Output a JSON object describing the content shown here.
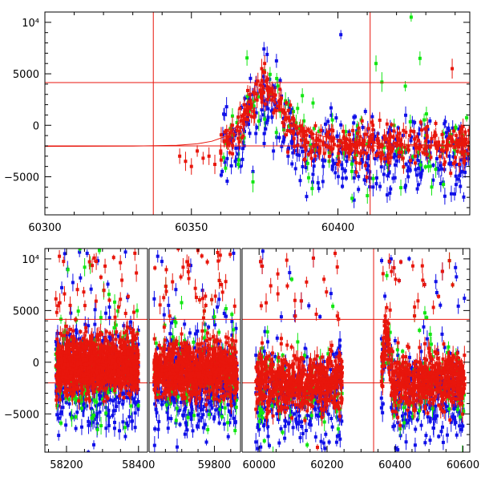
{
  "chart_data": [
    {
      "type": "scatter",
      "name": "top-panel",
      "xlim": [
        60300,
        60445
      ],
      "ylim": [
        -8700,
        11000
      ],
      "x_ticks": [
        "60300",
        "60350",
        "60400"
      ],
      "x_tick_values": [
        60300,
        60350,
        60400
      ],
      "y_ticks": [
        "10⁴",
        "5000",
        "0",
        "−5000"
      ],
      "y_tick_values": [
        10000,
        5000,
        0,
        -5000
      ],
      "hlines": [
        4150,
        -2000
      ],
      "vlines": [
        60337,
        60411
      ],
      "model_curve": {
        "x": [
          60300,
          60330,
          60345,
          60352,
          60357,
          60361,
          60364,
          60367,
          60370,
          60373,
          60375,
          60377,
          60380,
          60384,
          60390,
          60398,
          60408,
          60420,
          60445
        ],
        "y": [
          -2050,
          -2030,
          -1950,
          -1800,
          -1550,
          -1150,
          -500,
          400,
          1700,
          3100,
          3600,
          3000,
          1500,
          300,
          -700,
          -1300,
          -1650,
          -1850,
          -1980
        ],
        "color": "#e8160c"
      },
      "series": [
        {
          "color": "blue",
          "hex": "#1010e8",
          "points": [
            [
              60362,
              1800
            ],
            [
              60365,
              -3500
            ],
            [
              60366,
              800
            ],
            [
              60368,
              -2000
            ],
            [
              60370,
              2200
            ],
            [
              60371,
              -4500
            ],
            [
              60372,
              -800
            ],
            [
              60374,
              1500
            ],
            [
              60376,
              500
            ],
            [
              60378,
              -2500
            ],
            [
              60380,
              -1200
            ],
            [
              60383,
              -3000
            ],
            [
              60386,
              -2000
            ],
            [
              60389,
              -3500
            ],
            [
              60392,
              -2500
            ],
            [
              60395,
              -4000
            ],
            [
              60398,
              -2800
            ],
            [
              60401,
              8800
            ],
            [
              60403,
              -3500
            ],
            [
              60406,
              -4500
            ],
            [
              60409,
              -2500
            ],
            [
              60412,
              -6000
            ],
            [
              60416,
              -3500
            ],
            [
              60420,
              -2000
            ],
            [
              60424,
              -5000
            ],
            [
              60427,
              -3000
            ],
            [
              60430,
              -2500
            ],
            [
              60434,
              -4200
            ],
            [
              60438,
              -3000
            ],
            [
              60442,
              -1500
            ]
          ]
        },
        {
          "color": "green",
          "hex": "#12e612",
          "points": [
            [
              60364,
              900
            ],
            [
              60366,
              -3800
            ],
            [
              60368,
              -1200
            ],
            [
              60371,
              -5500
            ],
            [
              60373,
              400
            ],
            [
              60375,
              600
            ],
            [
              60379,
              -700
            ],
            [
              60383,
              2100
            ],
            [
              60390,
              -5100
            ],
            [
              60397,
              -3500
            ],
            [
              60402,
              -2700
            ],
            [
              60406,
              -1500
            ],
            [
              60410,
              -1800
            ],
            [
              60413,
              6000
            ],
            [
              60415,
              4200
            ],
            [
              60417,
              -3800
            ],
            [
              60420,
              -2500
            ],
            [
              60423,
              3800
            ],
            [
              60425,
              10500
            ],
            [
              60428,
              6500
            ],
            [
              60430,
              -1000
            ],
            [
              60432,
              -6000
            ],
            [
              60436,
              -800
            ],
            [
              60440,
              -2200
            ]
          ]
        },
        {
          "color": "red",
          "hex": "#e8160c",
          "points": [
            [
              60346,
              -3000
            ],
            [
              60348,
              -3500
            ],
            [
              60350,
              -4000
            ],
            [
              60352,
              -2500
            ],
            [
              60354,
              -3200
            ],
            [
              60356,
              -3000
            ],
            [
              60358,
              -3800
            ],
            [
              60360,
              -2500
            ],
            [
              60362,
              -1500
            ],
            [
              60364,
              0
            ],
            [
              60366,
              800
            ],
            [
              60368,
              2000
            ],
            [
              60370,
              3000
            ],
            [
              60372,
              4000
            ],
            [
              60374,
              5500
            ],
            [
              60375,
              6000
            ],
            [
              60376,
              4500
            ],
            [
              60378,
              3000
            ],
            [
              60380,
              1800
            ],
            [
              60382,
              1200
            ],
            [
              60385,
              500
            ],
            [
              60388,
              -300
            ],
            [
              60391,
              -800
            ],
            [
              60394,
              -1500
            ],
            [
              60397,
              -1200
            ],
            [
              60400,
              -2000
            ],
            [
              60403,
              -1800
            ],
            [
              60406,
              -2200
            ],
            [
              60409,
              -1500
            ],
            [
              60412,
              -2400
            ],
            [
              60415,
              -1900
            ],
            [
              60418,
              -2600
            ],
            [
              60421,
              -1500
            ],
            [
              60424,
              -2000
            ],
            [
              60427,
              -2200
            ],
            [
              60430,
              -1500
            ],
            [
              60433,
              -1000
            ],
            [
              60436,
              -2500
            ],
            [
              60439,
              5500
            ],
            [
              60442,
              -1800
            ]
          ]
        }
      ]
    },
    {
      "type": "scatter",
      "name": "bottom-panel",
      "segments": [
        {
          "label": "segment-1",
          "xlim": [
            58140,
            58425
          ],
          "x_ticks": [
            "58200",
            "58400"
          ],
          "x_tick_values": [
            58200,
            58400
          ],
          "data_range": [
            58170,
            58400
          ]
        },
        {
          "label": "segment-2",
          "xlim": [
            59600,
            59880
          ],
          "x_ticks": [
            "59800"
          ],
          "x_tick_values": [
            59800
          ],
          "data_range": [
            59615,
            59870
          ]
        },
        {
          "label": "segment-3",
          "xlim": [
            59950,
            60620
          ],
          "x_ticks": [
            "60000",
            "60200",
            "60400",
            "60600"
          ],
          "x_tick_values": [
            60000,
            60200,
            60400,
            60600
          ],
          "data_range": [
            59990,
            60605
          ],
          "gap": [
            60245,
            60360
          ],
          "vlines": [
            60337
          ]
        }
      ],
      "ylim": [
        -8700,
        11000
      ],
      "y_ticks": [
        "10⁴",
        "5000",
        "0",
        "−5000"
      ],
      "y_tick_values": [
        10000,
        5000,
        0,
        -5000
      ],
      "hlines": [
        4150,
        -2000
      ],
      "series": [
        {
          "color": "blue",
          "hex": "#1010e8"
        },
        {
          "color": "green",
          "hex": "#12e612"
        },
        {
          "color": "red",
          "hex": "#e8160c"
        }
      ]
    }
  ]
}
